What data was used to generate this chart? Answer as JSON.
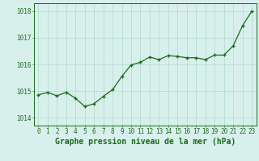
{
  "x": [
    0,
    1,
    2,
    3,
    4,
    5,
    6,
    7,
    8,
    9,
    10,
    11,
    12,
    13,
    14,
    15,
    16,
    17,
    18,
    19,
    20,
    21,
    22,
    23
  ],
  "y": [
    1014.85,
    1014.95,
    1014.82,
    1014.95,
    1014.73,
    1014.42,
    1014.52,
    1014.8,
    1015.05,
    1015.55,
    1015.98,
    1016.08,
    1016.28,
    1016.18,
    1016.33,
    1016.3,
    1016.25,
    1016.25,
    1016.18,
    1016.35,
    1016.35,
    1016.7,
    1017.45,
    1018.0
  ],
  "line_color": "#1a6b1a",
  "marker_color": "#1a6b1a",
  "bg_color": "#d8f0ec",
  "grid_color": "#b0d8d0",
  "title": "Graphe pression niveau de la mer (hPa)",
  "ylim": [
    1013.7,
    1018.3
  ],
  "yticks": [
    1014,
    1015,
    1016,
    1017,
    1018
  ],
  "xticks": [
    0,
    1,
    2,
    3,
    4,
    5,
    6,
    7,
    8,
    9,
    10,
    11,
    12,
    13,
    14,
    15,
    16,
    17,
    18,
    19,
    20,
    21,
    22,
    23
  ],
  "title_fontsize": 7.0,
  "tick_fontsize": 5.5,
  "title_color": "#1a6b1a",
  "tick_color": "#1a6b1a",
  "marker_size": 3.0,
  "line_width": 0.9
}
